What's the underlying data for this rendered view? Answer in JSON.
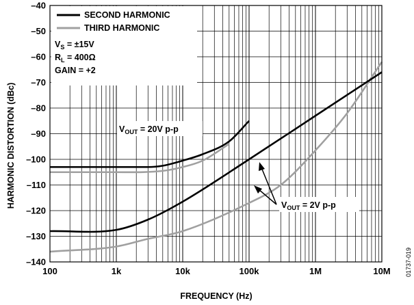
{
  "chart_data": {
    "type": "line",
    "xlabel": "FREQUENCY (Hz)",
    "ylabel": "HARMONIC DISTORTION (dBc)",
    "x_scale": "log",
    "xlim": [
      100,
      10000000
    ],
    "ylim": [
      -140,
      -40
    ],
    "grid": true,
    "x_ticks": [
      100,
      1000,
      10000,
      100000,
      1000000,
      10000000
    ],
    "x_tick_labels": [
      "100",
      "1k",
      "10k",
      "100k",
      "1M",
      "10M"
    ],
    "y_ticks": [
      -40,
      -50,
      -60,
      -70,
      -80,
      -90,
      -100,
      -110,
      -120,
      -130,
      -140
    ],
    "y_tick_labels": [
      "–40",
      "–50",
      "–60",
      "–70",
      "–80",
      "–90",
      "–100",
      "–110",
      "–120",
      "–130",
      "–140"
    ],
    "legend": {
      "placement": "top-left",
      "entries": [
        {
          "label": "SECOND HARMONIC",
          "color": "#000000"
        },
        {
          "label": "THIRD HARMONIC",
          "color": "#a0a0a0"
        }
      ]
    },
    "conditions": {
      "vs": {
        "main": "V",
        "sub": "S",
        "rest": " = ±15V"
      },
      "rl": {
        "main": "R",
        "sub": "L",
        "rest": " = 400Ω"
      },
      "gain": "GAIN = +2"
    },
    "annotations": {
      "vout_20": {
        "main": "V",
        "sub": "OUT",
        "rest": " = 20V p-p"
      },
      "vout_2": {
        "main": "V",
        "sub": "OUT",
        "rest": " = 2V p-p"
      }
    },
    "series": [
      {
        "name": "SECOND HARMONIC",
        "condition": "VOUT = 20V p-p",
        "color": "#000000",
        "x": [
          100,
          1000,
          3000,
          5000,
          10000,
          20000,
          50000,
          100000
        ],
        "y": [
          -103,
          -103,
          -103,
          -102.5,
          -100.5,
          -98,
          -93,
          -85
        ]
      },
      {
        "name": "THIRD HARMONIC",
        "condition": "VOUT = 20V p-p",
        "color": "#a0a0a0",
        "x": [
          100,
          1000,
          5000,
          10000,
          20000,
          50000
        ],
        "y": [
          -105,
          -105,
          -104.5,
          -103,
          -100.5,
          -94
        ]
      },
      {
        "name": "SECOND HARMONIC",
        "condition": "VOUT = 2V p-p",
        "color": "#000000",
        "x": [
          100,
          1000,
          3000,
          10000,
          100000,
          1000000,
          10000000
        ],
        "y": [
          -128,
          -127.5,
          -123.5,
          -116.5,
          -100,
          -83,
          -66
        ]
      },
      {
        "name": "THIRD HARMONIC",
        "condition": "VOUT = 2V p-p",
        "color": "#a0a0a0",
        "x": [
          100,
          1000,
          3000,
          10000,
          100000,
          300000,
          1000000,
          3000000,
          10000000
        ],
        "y": [
          -136,
          -134,
          -131,
          -128,
          -117,
          -110,
          -96.5,
          -82,
          -62
        ]
      }
    ]
  },
  "figure_id": "01737-019"
}
